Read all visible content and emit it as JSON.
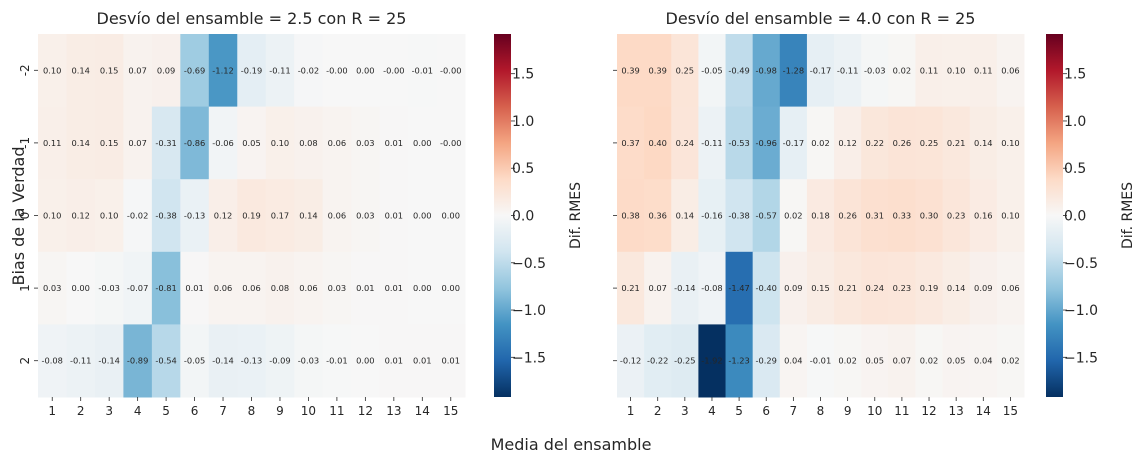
{
  "figure": {
    "xlabel": "Media del ensamble",
    "ylabel": "Bias de la Verdad",
    "colorbar_label": "Dif. RMES",
    "colormap": [
      "#053061",
      "#2166ac",
      "#4393c3",
      "#92c5de",
      "#d1e5f0",
      "#f7f7f7",
      "#fddbc7",
      "#f4a582",
      "#d6604d",
      "#b2182b",
      "#67001f"
    ]
  },
  "chart_data": [
    {
      "type": "heatmap",
      "title": "Desvío del ensamble = 2.5 con R = 25",
      "x": [
        "1",
        "2",
        "3",
        "4",
        "5",
        "6",
        "7",
        "8",
        "9",
        "10",
        "11",
        "12",
        "13",
        "14",
        "15"
      ],
      "y": [
        "-2",
        "-1",
        "0",
        "1",
        "2"
      ],
      "xlabel": "Media del ensamble",
      "ylabel": "Bias de la Verdad",
      "colorbar_label": "Dif. RMES",
      "vmin": -1.92,
      "vmax": 1.92,
      "colorbar_ticks": [
        "1.5",
        "1.0",
        "0.5",
        "0.0",
        "-0.5",
        "-1.0",
        "-1.5"
      ],
      "values": [
        [
          0.1,
          0.14,
          0.15,
          0.07,
          0.09,
          -0.69,
          -1.12,
          -0.19,
          -0.11,
          -0.02,
          -0.0,
          0.0,
          -0.0,
          -0.01,
          -0.0
        ],
        [
          0.11,
          0.14,
          0.15,
          0.07,
          -0.31,
          -0.86,
          -0.06,
          0.05,
          0.1,
          0.08,
          0.06,
          0.03,
          0.01,
          0.0,
          -0.0
        ],
        [
          0.1,
          0.12,
          0.1,
          -0.02,
          -0.38,
          -0.13,
          0.12,
          0.19,
          0.17,
          0.14,
          0.06,
          0.03,
          0.01,
          0.0,
          0.0
        ],
        [
          0.03,
          0.0,
          -0.03,
          -0.07,
          -0.81,
          0.01,
          0.06,
          0.06,
          0.08,
          0.06,
          0.03,
          0.01,
          0.01,
          0.0,
          0.0
        ],
        [
          -0.08,
          -0.11,
          -0.14,
          -0.89,
          -0.54,
          -0.05,
          -0.14,
          -0.13,
          -0.09,
          -0.03,
          -0.01,
          0.0,
          0.01,
          0.01,
          0.01
        ]
      ],
      "labels": [
        [
          "0.10",
          "0.14",
          "0.15",
          "0.07",
          "0.09",
          "-0.69",
          "-1.12",
          "-0.19",
          "-0.11",
          "-0.02",
          "-0.00",
          "0.00",
          "-0.00",
          "-0.01",
          "-0.00"
        ],
        [
          "0.11",
          "0.14",
          "0.15",
          "0.07",
          "-0.31",
          "-0.86",
          "-0.06",
          "0.05",
          "0.10",
          "0.08",
          "0.06",
          "0.03",
          "0.01",
          "0.00",
          "-0.00"
        ],
        [
          "0.10",
          "0.12",
          "0.10",
          "-0.02",
          "-0.38",
          "-0.13",
          "0.12",
          "0.19",
          "0.17",
          "0.14",
          "0.06",
          "0.03",
          "0.01",
          "0.00",
          "0.00"
        ],
        [
          "0.03",
          "0.00",
          "-0.03",
          "-0.07",
          "-0.81",
          "0.01",
          "0.06",
          "0.06",
          "0.08",
          "0.06",
          "0.03",
          "0.01",
          "0.01",
          "0.00",
          "0.00"
        ],
        [
          "-0.08",
          "-0.11",
          "-0.14",
          "-0.89",
          "-0.54",
          "-0.05",
          "-0.14",
          "-0.13",
          "-0.09",
          "-0.03",
          "-0.01",
          "0.00",
          "0.01",
          "0.01",
          "0.01"
        ]
      ]
    },
    {
      "type": "heatmap",
      "title": "Desvío del ensamble = 4.0 con R = 25",
      "x": [
        "1",
        "2",
        "3",
        "4",
        "5",
        "6",
        "7",
        "8",
        "9",
        "10",
        "11",
        "12",
        "13",
        "14",
        "15"
      ],
      "y": [
        "-2",
        "-1",
        "0",
        "1",
        "2"
      ],
      "colorbar_label": "Dif. RMES",
      "vmin": -1.92,
      "vmax": 1.92,
      "colorbar_ticks": [
        "1.5",
        "1.0",
        "0.5",
        "0.0",
        "-0.5",
        "-1.0",
        "-1.5"
      ],
      "values": [
        [
          0.39,
          0.39,
          0.25,
          -0.05,
          -0.49,
          -0.98,
          -1.28,
          -0.17,
          -0.11,
          -0.03,
          0.02,
          0.11,
          0.1,
          0.11,
          0.06
        ],
        [
          0.37,
          0.4,
          0.24,
          -0.11,
          -0.53,
          -0.96,
          -0.17,
          0.02,
          0.12,
          0.22,
          0.26,
          0.25,
          0.21,
          0.14,
          0.1
        ],
        [
          0.38,
          0.36,
          0.14,
          -0.16,
          -0.38,
          -0.57,
          0.02,
          0.18,
          0.26,
          0.31,
          0.33,
          0.3,
          0.23,
          0.16,
          0.1
        ],
        [
          0.21,
          0.07,
          -0.14,
          -0.08,
          -1.47,
          -0.4,
          0.09,
          0.15,
          0.21,
          0.24,
          0.23,
          0.19,
          0.14,
          0.09,
          0.06
        ],
        [
          -0.12,
          -0.22,
          -0.25,
          -1.92,
          -1.23,
          -0.29,
          0.04,
          -0.01,
          0.02,
          0.05,
          0.07,
          0.02,
          0.05,
          0.04,
          0.02
        ]
      ],
      "labels": [
        [
          "0.39",
          "0.39",
          "0.25",
          "-0.05",
          "-0.49",
          "-0.98",
          "-1.28",
          "-0.17",
          "-0.11",
          "-0.03",
          "0.02",
          "0.11",
          "0.10",
          "0.11",
          "0.06"
        ],
        [
          "0.37",
          "0.40",
          "0.24",
          "-0.11",
          "-0.53",
          "-0.96",
          "-0.17",
          "0.02",
          "0.12",
          "0.22",
          "0.26",
          "0.25",
          "0.21",
          "0.14",
          "0.10"
        ],
        [
          "0.38",
          "0.36",
          "0.14",
          "-0.16",
          "-0.38",
          "-0.57",
          "0.02",
          "0.18",
          "0.26",
          "0.31",
          "0.33",
          "0.30",
          "0.23",
          "0.16",
          "0.10"
        ],
        [
          "0.21",
          "0.07",
          "-0.14",
          "-0.08",
          "-1.47",
          "-0.40",
          "0.09",
          "0.15",
          "0.21",
          "0.24",
          "0.23",
          "0.19",
          "0.14",
          "0.09",
          "0.06"
        ],
        [
          "-0.12",
          "-0.22",
          "-0.25",
          "-1.92",
          "-1.23",
          "-0.29",
          "0.04",
          "-0.01",
          "0.02",
          "0.05",
          "0.07",
          "0.02",
          "0.05",
          "0.04",
          "0.02"
        ]
      ]
    }
  ]
}
